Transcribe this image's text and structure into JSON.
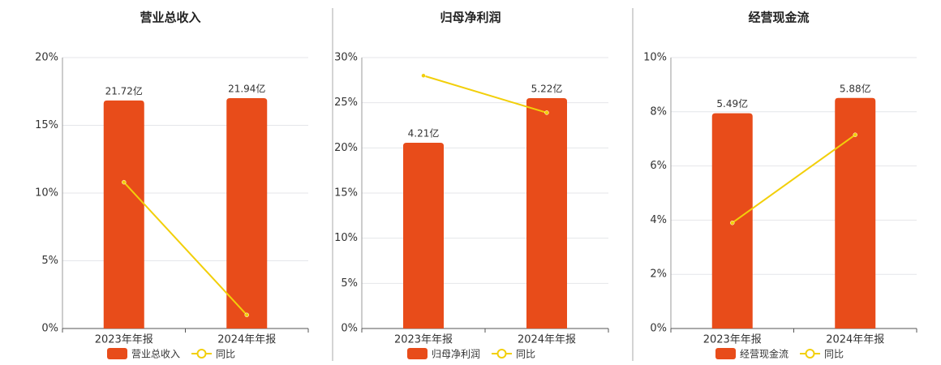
{
  "chart_data": [
    {
      "type": "bar",
      "title": "营业总收入",
      "categories": [
        "2023年年报",
        "2024年年报"
      ],
      "ylim": [
        0,
        20
      ],
      "yticks": [
        {
          "value": 0,
          "label": "0%"
        },
        {
          "value": 5,
          "label": "5%"
        },
        {
          "value": 10,
          "label": "10%"
        },
        {
          "value": 15,
          "label": "15%"
        },
        {
          "value": 20,
          "label": "20%"
        }
      ],
      "y2lim": [
        0,
        25.8
      ],
      "grid": true,
      "series": [
        {
          "name": "营业总收入",
          "type": "bar",
          "axis": "y2",
          "color": "#e84c1a",
          "values": [
            21.72,
            21.94
          ],
          "value_labels": [
            "21.72亿",
            "21.94亿"
          ]
        },
        {
          "name": "同比",
          "type": "line",
          "color": "#f2cf0a",
          "values": [
            10.8,
            1.0
          ]
        }
      ]
    },
    {
      "type": "bar",
      "title": "归母净利润",
      "categories": [
        "2023年年报",
        "2024年年报"
      ],
      "ylim": [
        0,
        30
      ],
      "yticks": [
        {
          "value": 0,
          "label": "0%"
        },
        {
          "value": 5,
          "label": "5%"
        },
        {
          "value": 10,
          "label": "10%"
        },
        {
          "value": 15,
          "label": "15%"
        },
        {
          "value": 20,
          "label": "20%"
        },
        {
          "value": 25,
          "label": "25%"
        },
        {
          "value": 30,
          "label": "30%"
        }
      ],
      "y2lim": [
        0,
        6.14
      ],
      "grid": true,
      "series": [
        {
          "name": "归母净利润",
          "type": "bar",
          "axis": "y2",
          "color": "#e84c1a",
          "values": [
            4.21,
            5.22
          ],
          "value_labels": [
            "4.21亿",
            "5.22亿"
          ]
        },
        {
          "name": "同比",
          "type": "line",
          "color": "#f2cf0a",
          "values": [
            28.0,
            23.9
          ]
        }
      ]
    },
    {
      "type": "bar",
      "title": "经营现金流",
      "categories": [
        "2023年年报",
        "2024年年报"
      ],
      "ylim": [
        0,
        10
      ],
      "yticks": [
        {
          "value": 0,
          "label": "0%"
        },
        {
          "value": 2,
          "label": "2%"
        },
        {
          "value": 4,
          "label": "4%"
        },
        {
          "value": 6,
          "label": "6%"
        },
        {
          "value": 8,
          "label": "8%"
        },
        {
          "value": 10,
          "label": "10%"
        }
      ],
      "y2lim": [
        0,
        6.91
      ],
      "grid": true,
      "series": [
        {
          "name": "经营现金流",
          "type": "bar",
          "axis": "y2",
          "color": "#e84c1a",
          "values": [
            5.49,
            5.88
          ],
          "value_labels": [
            "5.49亿",
            "5.88亿"
          ]
        },
        {
          "name": "同比",
          "type": "line",
          "color": "#f2cf0a",
          "values": [
            3.9,
            7.15
          ]
        }
      ]
    }
  ]
}
